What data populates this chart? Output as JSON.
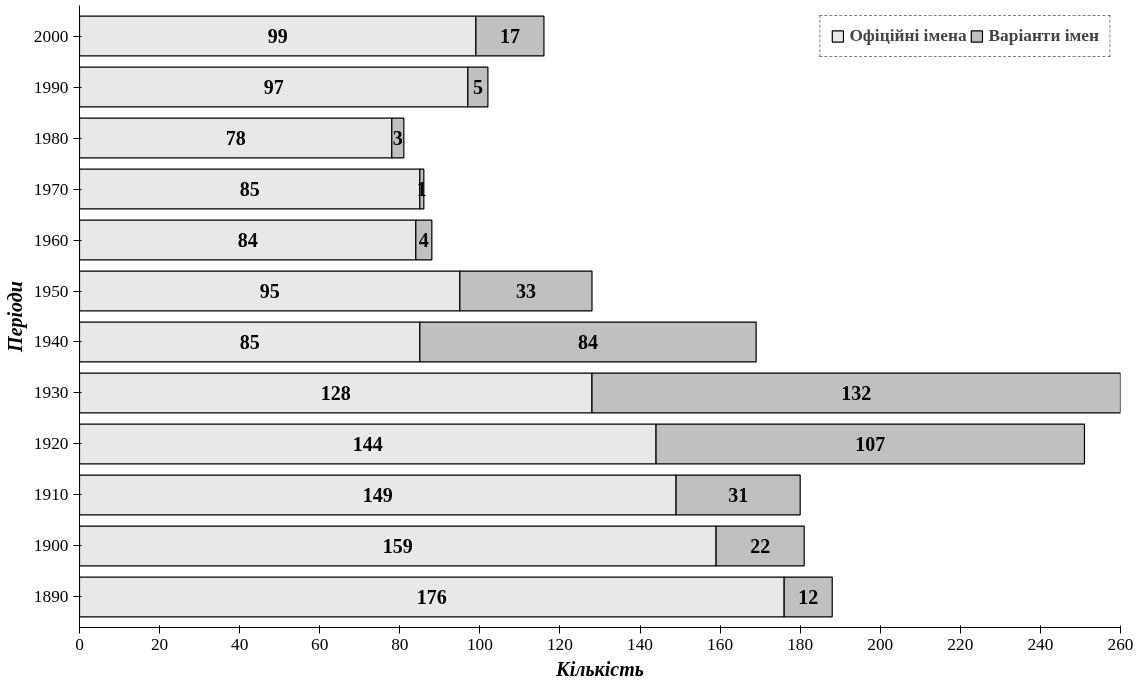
{
  "chart_data": {
    "type": "bar",
    "orientation": "horizontal",
    "stacked": true,
    "data_labels": true,
    "grid": false,
    "legend": "top right",
    "xlabel": "Кількість",
    "ylabel": "Періоди",
    "categories": [
      "2000",
      "1990",
      "1980",
      "1970",
      "1960",
      "1950",
      "1940",
      "1930",
      "1920",
      "1910",
      "1900",
      "1890"
    ],
    "xlim": [
      0,
      260
    ],
    "xticks": [
      0,
      20,
      40,
      60,
      80,
      100,
      120,
      140,
      160,
      180,
      200,
      220,
      240,
      260
    ],
    "series": [
      {
        "name": "Офіційні імена",
        "color": "#e8e8e8",
        "values": [
          99,
          97,
          78,
          85,
          84,
          95,
          85,
          128,
          144,
          149,
          159,
          176
        ]
      },
      {
        "name": "Варіанти імен",
        "color": "#c0c0c0",
        "values": [
          17,
          5,
          3,
          1,
          4,
          33,
          84,
          132,
          107,
          31,
          22,
          12
        ]
      }
    ]
  }
}
